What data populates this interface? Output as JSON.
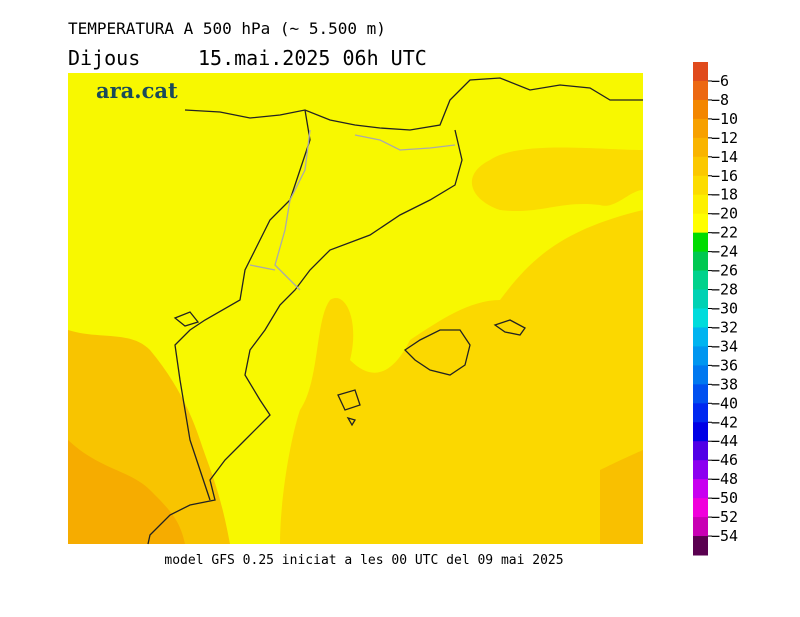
{
  "header": {
    "title": "TEMPERATURA A 500 hPa (~ 5.500 m)",
    "day": "Dijous",
    "datetime": "15.mai.2025 06h UTC"
  },
  "logo": "ara.cat",
  "footer": "model GFS 0.25 iniciat a les 00 UTC del 09 mai 2025",
  "colorbar": {
    "labels": [
      "−6",
      "−8",
      "−10",
      "−12",
      "−14",
      "−16",
      "−18",
      "−20",
      "−22",
      "−24",
      "−26",
      "−28",
      "−30",
      "−32",
      "−34",
      "−36",
      "−38",
      "−40",
      "−42",
      "−44",
      "−46",
      "−48",
      "−50",
      "−52",
      "−54"
    ],
    "colors": [
      "#e04a1c",
      "#ec6812",
      "#f38600",
      "#f7a000",
      "#f9b400",
      "#fbc800",
      "#fcdc00",
      "#fdf000",
      "#ffff00",
      "#00dc00",
      "#00c850",
      "#00d28c",
      "#00d2b4",
      "#00dcdc",
      "#00b4f0",
      "#0096f0",
      "#0078f0",
      "#0050f0",
      "#0028f0",
      "#0000e6",
      "#5000e6",
      "#8c00f0",
      "#c800f0",
      "#f000dc",
      "#c800b4",
      "#5a0050"
    ]
  }
}
